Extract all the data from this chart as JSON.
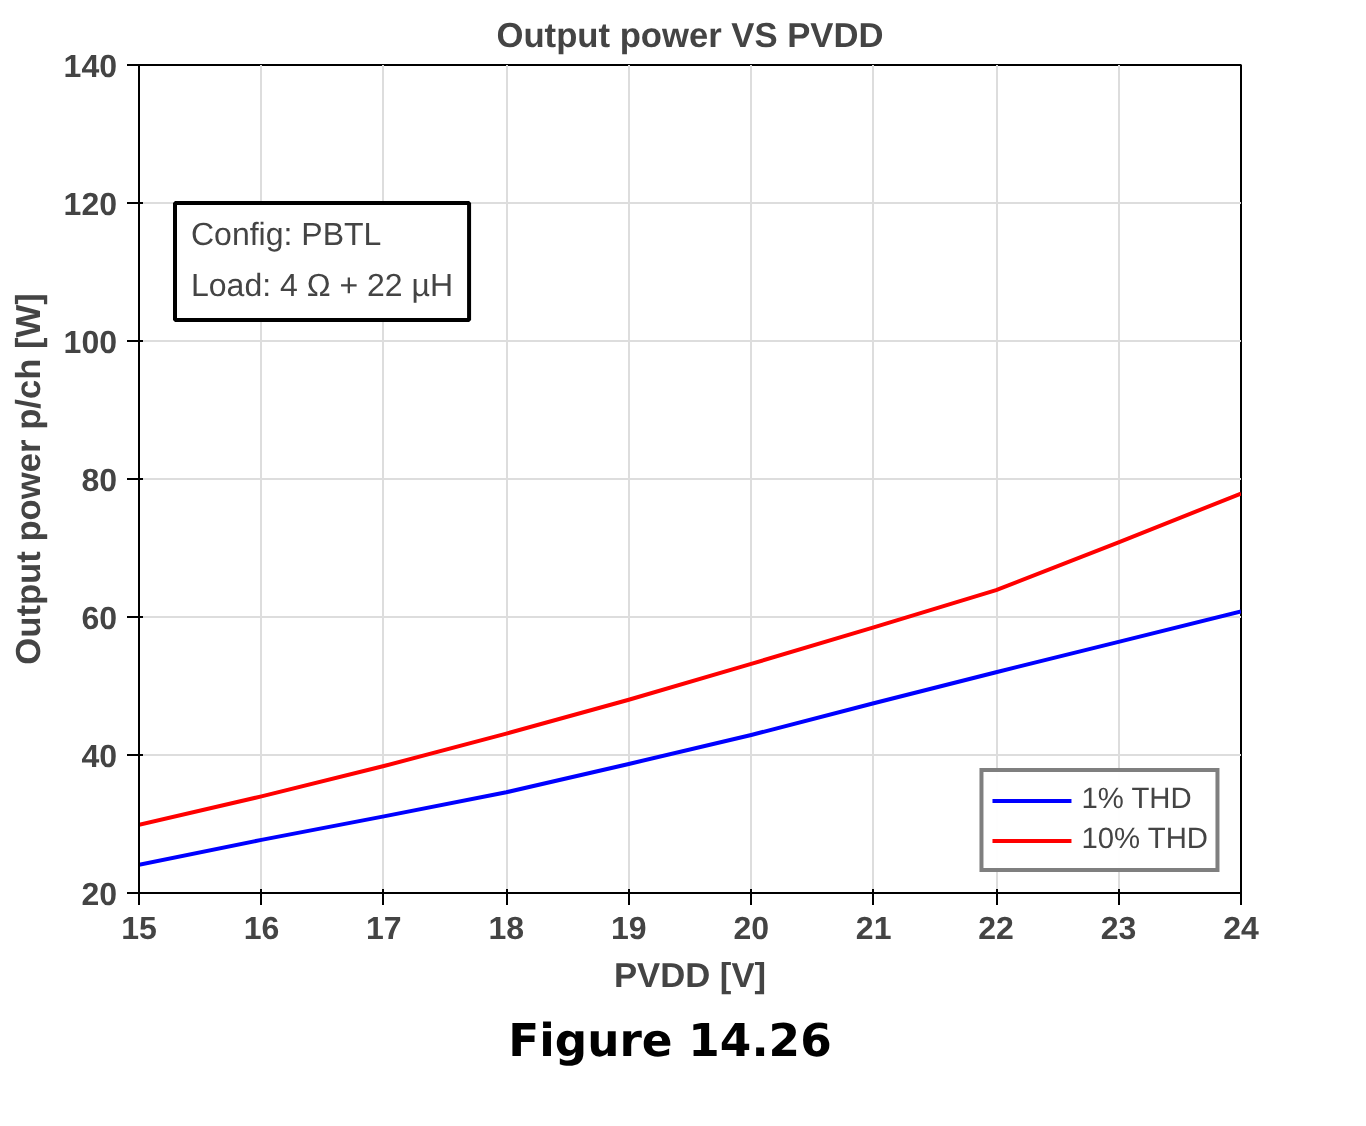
{
  "chart_data": {
    "type": "line",
    "title": "Output power VS PVDD",
    "xlabel": "PVDD [V]",
    "ylabel": "Output power p/ch [W]",
    "x": [
      15,
      16,
      17,
      18,
      19,
      20,
      21,
      22,
      23,
      24
    ],
    "series": [
      {
        "name": "1% THD",
        "color": "#0000ff",
        "values": [
          24.1,
          27.7,
          31.1,
          34.6,
          38.7,
          42.9,
          47.5,
          52.0,
          56.4,
          60.8
        ]
      },
      {
        "name": "10% THD",
        "color": "#ff0000",
        "values": [
          29.9,
          34.0,
          38.4,
          43.1,
          48.0,
          53.2,
          58.5,
          63.9,
          70.8,
          77.9
        ]
      }
    ],
    "xlim": [
      15,
      24
    ],
    "ylim": [
      20,
      140
    ],
    "xticks": [
      15,
      16,
      17,
      18,
      19,
      20,
      21,
      22,
      23,
      24
    ],
    "yticks": [
      20,
      40,
      60,
      80,
      100,
      120,
      140
    ],
    "grid": true,
    "legend": "bottom right",
    "marker": "none",
    "line_style": "solid",
    "annotations": [
      "Config: PBTL",
      "Load: 4 Ω + 22 µH",
      "Figure 14.26"
    ]
  }
}
